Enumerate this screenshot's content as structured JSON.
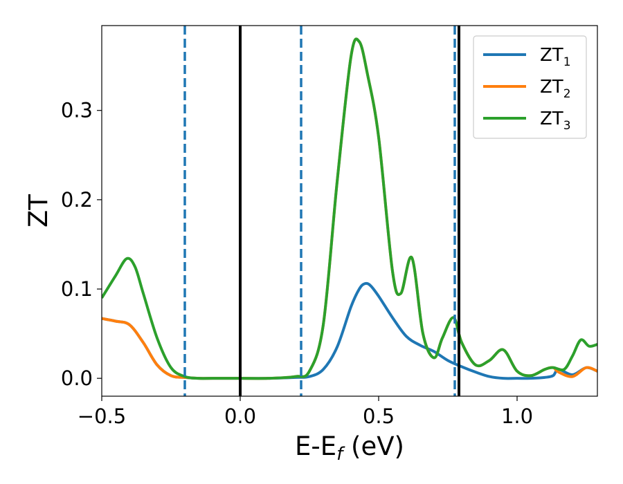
{
  "chart_data": {
    "type": "line",
    "xlabel_main": "E-E",
    "xlabel_sub": "f",
    "xlabel_unit": " (eV)",
    "ylabel": "ZT",
    "xlim": [
      -0.5,
      1.29
    ],
    "ylim": [
      -0.02,
      0.395
    ],
    "x_ticks": [
      {
        "value": -0.5,
        "label": "−0.5"
      },
      {
        "value": 0.0,
        "label": "0.0"
      },
      {
        "value": 0.5,
        "label": "0.5"
      },
      {
        "value": 1.0,
        "label": "1.0"
      }
    ],
    "y_ticks": [
      {
        "value": 0.0,
        "label": "0.0"
      },
      {
        "value": 0.1,
        "label": "0.1"
      },
      {
        "value": 0.2,
        "label": "0.2"
      },
      {
        "value": 0.3,
        "label": "0.3"
      }
    ],
    "vertical_lines": [
      {
        "x": -0.2,
        "style": "dashed",
        "color": "#1f77b4"
      },
      {
        "x": 0.0,
        "style": "solid",
        "color": "#000000"
      },
      {
        "x": 0.22,
        "style": "dashed",
        "color": "#1f77b4"
      },
      {
        "x": 0.775,
        "style": "dashed",
        "color": "#1f77b4"
      },
      {
        "x": 0.79,
        "style": "solid",
        "color": "#000000"
      }
    ],
    "series": [
      {
        "name": "ZT",
        "sub": "1",
        "color": "#1f77b4",
        "x": [
          -0.5,
          -0.45,
          -0.4,
          -0.35,
          -0.3,
          -0.25,
          -0.2,
          -0.15,
          -0.1,
          0.0,
          0.1,
          0.2,
          0.25,
          0.3,
          0.35,
          0.4,
          0.43,
          0.45,
          0.47,
          0.5,
          0.55,
          0.6,
          0.65,
          0.7,
          0.75,
          0.8,
          0.85,
          0.9,
          0.95,
          1.0,
          1.05,
          1.1,
          1.13,
          1.15,
          1.2,
          1.25,
          1.29
        ],
        "values": [
          0.067,
          0.064,
          0.06,
          0.04,
          0.015,
          0.003,
          0.001,
          0.0,
          0.0,
          0.0,
          0.0,
          0.001,
          0.002,
          0.01,
          0.035,
          0.08,
          0.1,
          0.106,
          0.104,
          0.092,
          0.068,
          0.047,
          0.037,
          0.03,
          0.02,
          0.013,
          0.007,
          0.002,
          0.0,
          0.0,
          0.0,
          0.001,
          0.003,
          0.01,
          0.004,
          0.012,
          0.008
        ]
      },
      {
        "name": "ZT",
        "sub": "2",
        "color": "#ff7f0e",
        "x": [
          -0.5,
          -0.45,
          -0.4,
          -0.35,
          -0.3,
          -0.25,
          -0.2,
          -0.15,
          -0.1,
          0.0,
          0.1,
          0.2,
          0.25,
          0.3,
          0.35,
          0.4,
          0.43,
          0.46,
          0.5,
          0.55,
          0.58,
          0.62,
          0.66,
          0.7,
          0.73,
          0.77,
          0.8,
          0.85,
          0.9,
          0.95,
          1.0,
          1.05,
          1.1,
          1.13,
          1.15,
          1.2,
          1.25,
          1.29
        ],
        "values": [
          0.067,
          0.064,
          0.06,
          0.04,
          0.015,
          0.003,
          0.001,
          0.0,
          0.0,
          0.0,
          0.0,
          0.002,
          0.008,
          0.06,
          0.22,
          0.36,
          0.377,
          0.34,
          0.27,
          0.12,
          0.095,
          0.135,
          0.05,
          0.023,
          0.045,
          0.068,
          0.04,
          0.015,
          0.02,
          0.032,
          0.008,
          0.003,
          0.01,
          0.012,
          0.007,
          0.002,
          0.012,
          0.008
        ]
      },
      {
        "name": "ZT",
        "sub": "3",
        "color": "#2ca02c",
        "x": [
          -0.5,
          -0.45,
          -0.41,
          -0.38,
          -0.35,
          -0.3,
          -0.25,
          -0.2,
          -0.15,
          -0.1,
          0.0,
          0.1,
          0.2,
          0.25,
          0.3,
          0.35,
          0.4,
          0.43,
          0.46,
          0.5,
          0.55,
          0.58,
          0.62,
          0.66,
          0.7,
          0.73,
          0.77,
          0.8,
          0.85,
          0.9,
          0.95,
          1.0,
          1.05,
          1.1,
          1.13,
          1.17,
          1.2,
          1.23,
          1.26,
          1.29
        ],
        "values": [
          0.09,
          0.115,
          0.134,
          0.125,
          0.095,
          0.045,
          0.012,
          0.002,
          0.0,
          0.0,
          0.0,
          0.0,
          0.002,
          0.008,
          0.06,
          0.22,
          0.36,
          0.377,
          0.34,
          0.27,
          0.12,
          0.095,
          0.135,
          0.05,
          0.023,
          0.045,
          0.068,
          0.04,
          0.015,
          0.02,
          0.032,
          0.008,
          0.003,
          0.01,
          0.012,
          0.01,
          0.025,
          0.043,
          0.036,
          0.038
        ]
      }
    ],
    "legend_position": "top-right"
  }
}
